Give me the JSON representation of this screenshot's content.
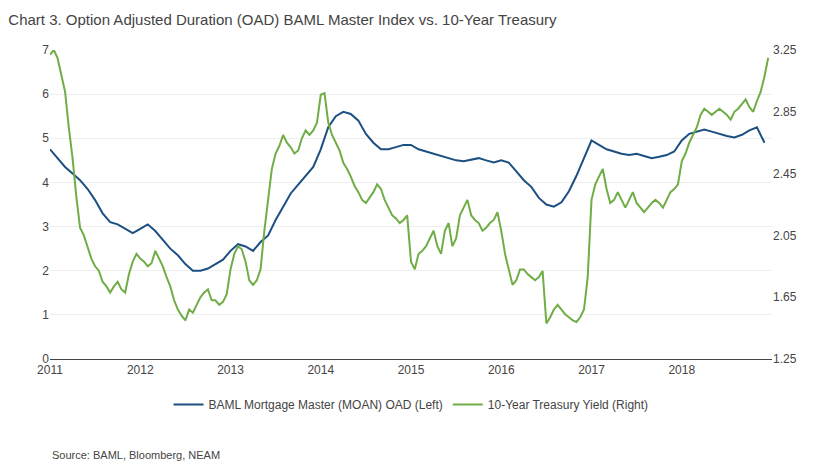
{
  "chart_data": {
    "type": "line",
    "title": "Chart 3. Option Adjusted Duration (OAD) BAML Master Index vs. 10-Year Treasury",
    "annotations": [
      "Source: BAML, Bloomberg, NEAM"
    ],
    "xlim": [
      2011.0,
      2019.0
    ],
    "xticks": [
      2011,
      2012,
      2013,
      2014,
      2015,
      2016,
      2017,
      2018
    ],
    "ylim": [
      0,
      7
    ],
    "yticks": [
      0,
      1,
      2,
      3,
      4,
      5,
      6,
      7
    ],
    "y2lim": [
      1.25,
      3.25
    ],
    "y2ticks": [
      1.25,
      1.65,
      2.05,
      2.45,
      2.85,
      3.25
    ],
    "grid": true,
    "legend": "bottom",
    "series": [
      {
        "name": "BAML Mortgage Master (MOAN) OAD (Left)",
        "color": "#1c4f82",
        "axis": "y",
        "x": [
          2011.0,
          2011.083,
          2011.167,
          2011.25,
          2011.333,
          2011.417,
          2011.5,
          2011.583,
          2011.667,
          2011.75,
          2011.833,
          2011.917,
          2012.0,
          2012.083,
          2012.167,
          2012.25,
          2012.333,
          2012.417,
          2012.5,
          2012.583,
          2012.667,
          2012.75,
          2012.833,
          2012.917,
          2013.0,
          2013.083,
          2013.167,
          2013.25,
          2013.333,
          2013.417,
          2013.5,
          2013.583,
          2013.667,
          2013.75,
          2013.833,
          2013.917,
          2014.0,
          2014.083,
          2014.167,
          2014.25,
          2014.333,
          2014.417,
          2014.5,
          2014.583,
          2014.667,
          2014.75,
          2014.833,
          2014.917,
          2015.0,
          2015.083,
          2015.167,
          2015.25,
          2015.333,
          2015.417,
          2015.5,
          2015.583,
          2015.667,
          2015.75,
          2015.833,
          2015.917,
          2016.0,
          2016.083,
          2016.167,
          2016.25,
          2016.333,
          2016.417,
          2016.5,
          2016.583,
          2016.667,
          2016.75,
          2016.833,
          2016.917,
          2017.0,
          2017.083,
          2017.167,
          2017.25,
          2017.333,
          2017.417,
          2017.5,
          2017.583,
          2017.667,
          2017.75,
          2017.833,
          2017.917,
          2018.0,
          2018.083,
          2018.167,
          2018.25,
          2018.333,
          2018.417,
          2018.5,
          2018.583,
          2018.667,
          2018.75,
          2018.833,
          2018.917
        ],
        "values": [
          4.75,
          4.55,
          4.35,
          4.2,
          4.05,
          3.85,
          3.6,
          3.3,
          3.1,
          3.05,
          2.95,
          2.85,
          2.95,
          3.05,
          2.9,
          2.7,
          2.5,
          2.35,
          2.15,
          2.0,
          2.0,
          2.05,
          2.15,
          2.25,
          2.45,
          2.6,
          2.55,
          2.45,
          2.65,
          2.8,
          3.15,
          3.45,
          3.75,
          3.95,
          4.15,
          4.35,
          4.75,
          5.25,
          5.5,
          5.6,
          5.55,
          5.4,
          5.1,
          4.9,
          4.75,
          4.75,
          4.8,
          4.85,
          4.85,
          4.75,
          4.7,
          4.65,
          4.6,
          4.55,
          4.5,
          4.48,
          4.52,
          4.55,
          4.5,
          4.45,
          4.5,
          4.45,
          4.25,
          4.05,
          3.9,
          3.65,
          3.5,
          3.45,
          3.55,
          3.8,
          4.15,
          4.55,
          4.95,
          4.85,
          4.75,
          4.7,
          4.65,
          4.62,
          4.65,
          4.6,
          4.55,
          4.58,
          4.62,
          4.7,
          4.95,
          5.1,
          5.15,
          5.2,
          5.15,
          5.1,
          5.05,
          5.02,
          5.08,
          5.18,
          5.25,
          4.9
        ]
      },
      {
        "name": "10-Year Treasury Yield (Right)",
        "color": "#70ad47",
        "axis": "y2",
        "x": [
          2011.0,
          2011.042,
          2011.083,
          2011.125,
          2011.167,
          2011.208,
          2011.25,
          2011.292,
          2011.333,
          2011.375,
          2011.417,
          2011.458,
          2011.5,
          2011.542,
          2011.583,
          2011.625,
          2011.667,
          2011.708,
          2011.75,
          2011.792,
          2011.833,
          2011.875,
          2011.917,
          2011.958,
          2012.0,
          2012.042,
          2012.083,
          2012.125,
          2012.167,
          2012.208,
          2012.25,
          2012.292,
          2012.333,
          2012.375,
          2012.417,
          2012.458,
          2012.5,
          2012.542,
          2012.583,
          2012.625,
          2012.667,
          2012.708,
          2012.75,
          2012.792,
          2012.833,
          2012.875,
          2012.917,
          2012.958,
          2013.0,
          2013.042,
          2013.083,
          2013.125,
          2013.167,
          2013.208,
          2013.25,
          2013.292,
          2013.333,
          2013.375,
          2013.417,
          2013.458,
          2013.5,
          2013.542,
          2013.583,
          2013.625,
          2013.667,
          2013.708,
          2013.75,
          2013.792,
          2013.833,
          2013.875,
          2013.917,
          2013.958,
          2014.0,
          2014.042,
          2014.083,
          2014.125,
          2014.167,
          2014.208,
          2014.25,
          2014.292,
          2014.333,
          2014.375,
          2014.417,
          2014.458,
          2014.5,
          2014.542,
          2014.583,
          2014.625,
          2014.667,
          2014.708,
          2014.75,
          2014.792,
          2014.833,
          2014.875,
          2014.917,
          2014.958,
          2015.0,
          2015.042,
          2015.083,
          2015.125,
          2015.167,
          2015.208,
          2015.25,
          2015.292,
          2015.333,
          2015.375,
          2015.417,
          2015.458,
          2015.5,
          2015.542,
          2015.583,
          2015.625,
          2015.667,
          2015.708,
          2015.75,
          2015.792,
          2015.833,
          2015.875,
          2015.917,
          2015.958,
          2016.0,
          2016.042,
          2016.083,
          2016.125,
          2016.167,
          2016.208,
          2016.25,
          2016.292,
          2016.333,
          2016.375,
          2016.417,
          2016.458,
          2016.5,
          2016.542,
          2016.583,
          2016.625,
          2016.667,
          2016.708,
          2016.75,
          2016.792,
          2016.833,
          2016.875,
          2016.917,
          2016.958,
          2017.0,
          2017.042,
          2017.083,
          2017.125,
          2017.167,
          2017.208,
          2017.25,
          2017.292,
          2017.333,
          2017.375,
          2017.417,
          2017.458,
          2017.5,
          2017.542,
          2017.583,
          2017.625,
          2017.667,
          2017.708,
          2017.75,
          2017.792,
          2017.833,
          2017.875,
          2017.917,
          2017.958,
          2018.0,
          2018.042,
          2018.083,
          2018.125,
          2018.167,
          2018.208,
          2018.25,
          2018.292,
          2018.333,
          2018.375,
          2018.417,
          2018.458,
          2018.5,
          2018.542,
          2018.583,
          2018.625,
          2018.667,
          2018.708,
          2018.75,
          2018.792,
          2018.833,
          2018.875,
          2018.917,
          2018.958
        ],
        "values": [
          3.22,
          3.25,
          3.2,
          3.1,
          2.98,
          2.75,
          2.55,
          2.3,
          2.1,
          2.05,
          1.98,
          1.9,
          1.85,
          1.82,
          1.75,
          1.72,
          1.68,
          1.72,
          1.75,
          1.7,
          1.68,
          1.8,
          1.88,
          1.93,
          1.9,
          1.88,
          1.85,
          1.87,
          1.95,
          1.9,
          1.85,
          1.78,
          1.72,
          1.63,
          1.57,
          1.53,
          1.5,
          1.57,
          1.55,
          1.6,
          1.65,
          1.68,
          1.7,
          1.63,
          1.63,
          1.6,
          1.62,
          1.67,
          1.83,
          1.93,
          1.98,
          1.96,
          1.88,
          1.76,
          1.73,
          1.76,
          1.83,
          2.08,
          2.28,
          2.48,
          2.58,
          2.63,
          2.7,
          2.65,
          2.62,
          2.58,
          2.6,
          2.68,
          2.73,
          2.7,
          2.73,
          2.78,
          2.96,
          2.97,
          2.78,
          2.7,
          2.65,
          2.6,
          2.52,
          2.48,
          2.43,
          2.37,
          2.33,
          2.28,
          2.26,
          2.3,
          2.33,
          2.38,
          2.35,
          2.28,
          2.23,
          2.18,
          2.16,
          2.13,
          2.15,
          2.18,
          1.88,
          1.83,
          1.93,
          1.95,
          1.98,
          2.03,
          2.08,
          1.98,
          1.93,
          2.08,
          2.13,
          1.98,
          2.03,
          2.18,
          2.23,
          2.28,
          2.18,
          2.15,
          2.13,
          2.08,
          2.1,
          2.13,
          2.15,
          2.2,
          2.08,
          1.93,
          1.83,
          1.73,
          1.76,
          1.83,
          1.83,
          1.8,
          1.78,
          1.76,
          1.78,
          1.82,
          1.48,
          1.52,
          1.57,
          1.6,
          1.57,
          1.54,
          1.52,
          1.5,
          1.49,
          1.52,
          1.57,
          1.78,
          2.28,
          2.38,
          2.43,
          2.48,
          2.35,
          2.26,
          2.28,
          2.33,
          2.28,
          2.23,
          2.28,
          2.33,
          2.26,
          2.23,
          2.2,
          2.23,
          2.26,
          2.28,
          2.26,
          2.23,
          2.28,
          2.33,
          2.35,
          2.38,
          2.53,
          2.58,
          2.65,
          2.7,
          2.75,
          2.83,
          2.87,
          2.85,
          2.83,
          2.85,
          2.87,
          2.85,
          2.83,
          2.8,
          2.85,
          2.87,
          2.9,
          2.93,
          2.88,
          2.85,
          2.92,
          2.98,
          3.08,
          3.2
        ]
      }
    ]
  }
}
